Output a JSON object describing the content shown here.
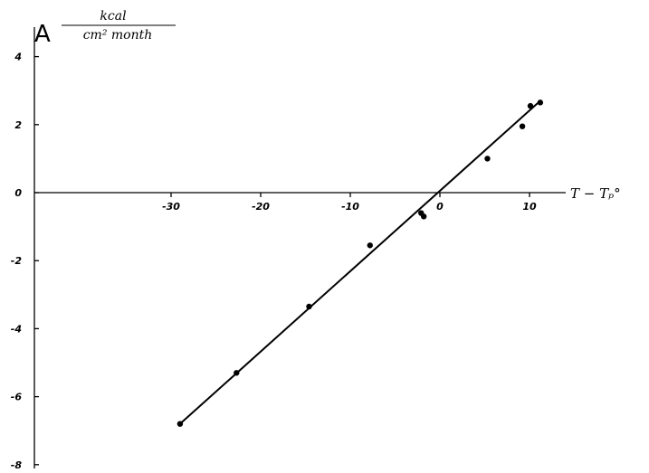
{
  "chart_data": {
    "type": "scatter",
    "ylabel": {
      "symbol": "A",
      "numerator": "kcal",
      "denominator": "cm² month"
    },
    "xlabel": "T − Tₚ°",
    "xlim": [
      -39,
      15
    ],
    "ylim": [
      -8,
      5
    ],
    "x_ticks": [
      -30,
      -20,
      -10,
      0,
      10
    ],
    "x_tick_labels": [
      "-30",
      "-20",
      "-10",
      "0",
      "10"
    ],
    "y_ticks": [
      4,
      2,
      0,
      -2,
      -4,
      -6,
      -8
    ],
    "y_tick_labels": [
      "4",
      "2",
      "0",
      "-2",
      "-4",
      "-6",
      "-8"
    ],
    "points": [
      {
        "x": -29.0,
        "y": -6.8
      },
      {
        "x": -22.7,
        "y": -5.3
      },
      {
        "x": -14.6,
        "y": -3.35
      },
      {
        "x": -7.8,
        "y": -1.55
      },
      {
        "x": -2.1,
        "y": -0.6
      },
      {
        "x": -1.8,
        "y": -0.7
      },
      {
        "x": 5.3,
        "y": 1.0
      },
      {
        "x": 9.2,
        "y": 1.95
      },
      {
        "x": 10.1,
        "y": 2.55
      },
      {
        "x": 11.2,
        "y": 2.65
      }
    ],
    "fit_line": {
      "x": [
        -29.0,
        11.2
      ],
      "y": [
        -6.8,
        2.7
      ]
    },
    "grid": false
  }
}
